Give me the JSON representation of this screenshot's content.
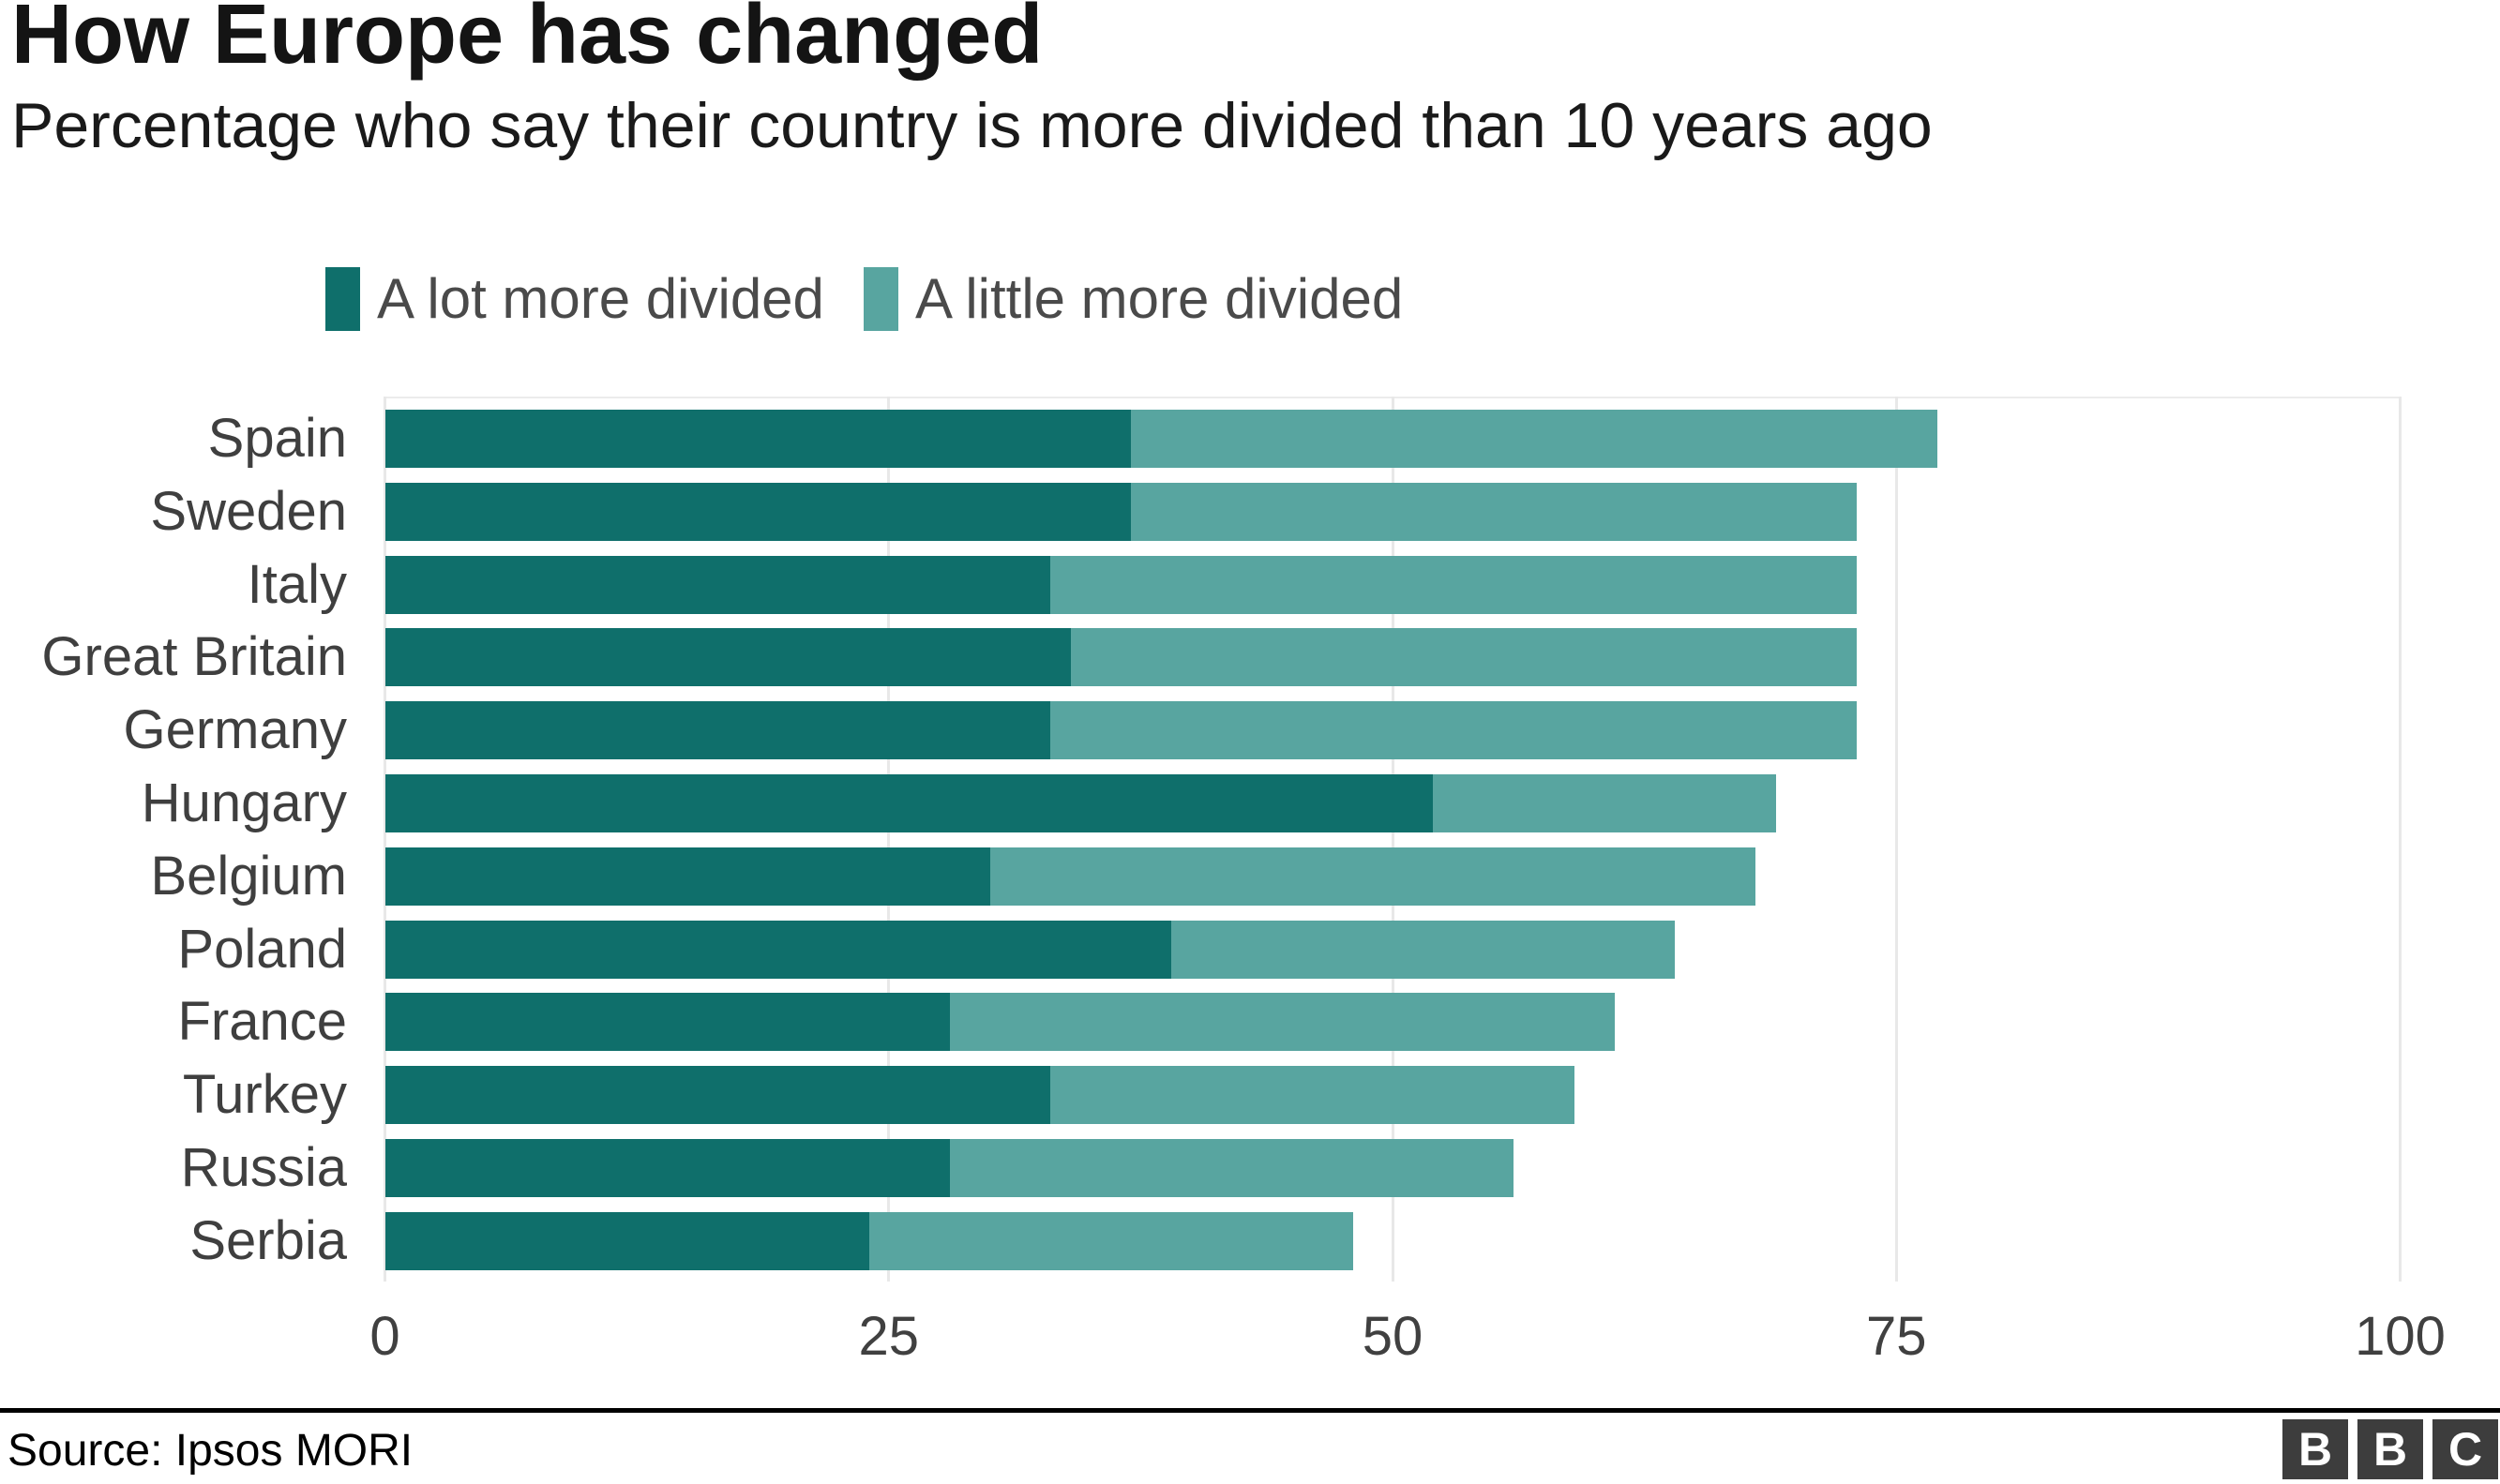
{
  "title": "How Europe has changed",
  "subtitle": "Percentage who say their country is more divided than 10 years ago",
  "legend": {
    "items": [
      {
        "label": "A lot more divided",
        "color": "#0f6f6b"
      },
      {
        "label": "A little more divided",
        "color": "#58a5a0"
      }
    ]
  },
  "source": "Source: Ipsos MORI",
  "logo_letters": [
    "B",
    "B",
    "C"
  ],
  "colors": {
    "a_lot_more_divided": "#0f6f6b",
    "a_little_more_divided": "#58a5a0",
    "gridline": "#e8e8e8",
    "axis_text": "#404040",
    "label_text": "#3f3f3f",
    "logo_block": "#3d3d3d"
  },
  "chart_data": {
    "type": "bar",
    "orientation": "horizontal",
    "stacked": true,
    "title": "How Europe has changed",
    "subtitle": "Percentage who say their country is more divided than 10 years ago",
    "xlabel": "",
    "ylabel": "",
    "xlim": [
      0,
      100
    ],
    "x_ticks": [
      0,
      25,
      50,
      75,
      100
    ],
    "grid": true,
    "legend_position": "top",
    "categories": [
      "Spain",
      "Sweden",
      "Italy",
      "Great Britain",
      "Germany",
      "Hungary",
      "Belgium",
      "Poland",
      "France",
      "Turkey",
      "Russia",
      "Serbia"
    ],
    "series": [
      {
        "name": "A lot more divided",
        "color": "#0f6f6b",
        "values": [
          37,
          37,
          33,
          34,
          33,
          52,
          30,
          39,
          28,
          33,
          28,
          24
        ]
      },
      {
        "name": "A little more divided",
        "color": "#58a5a0",
        "values": [
          40,
          36,
          40,
          39,
          40,
          17,
          38,
          25,
          33,
          26,
          28,
          24
        ]
      }
    ],
    "totals": [
      77,
      73,
      73,
      73,
      73,
      69,
      68,
      64,
      61,
      59,
      56,
      48
    ]
  }
}
